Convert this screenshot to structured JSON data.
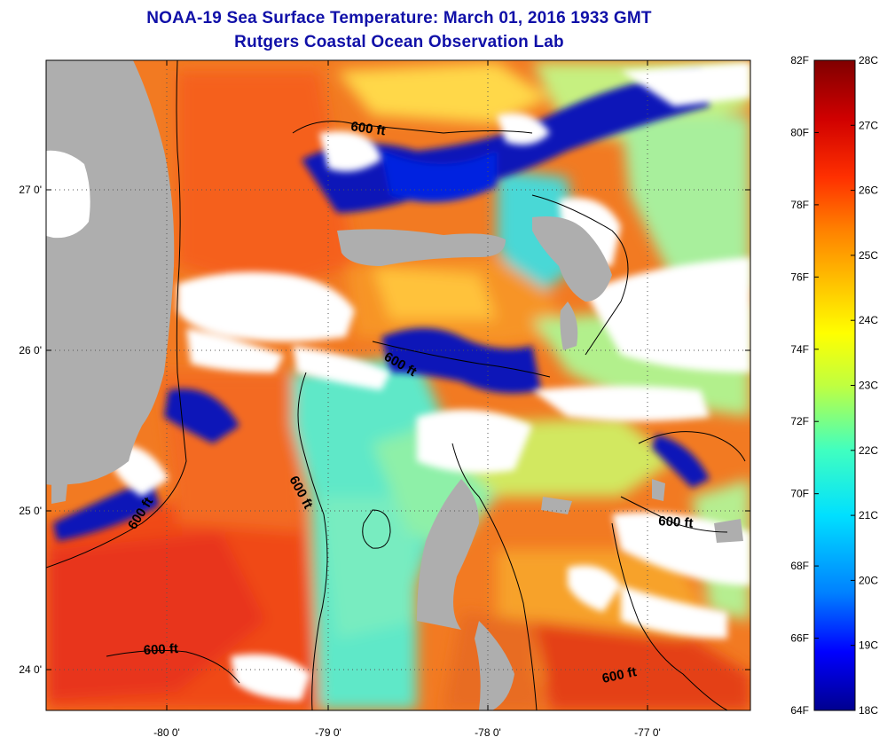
{
  "header": {
    "title": "NOAA-19 Sea Surface Temperature:  March 01, 2016 1933 GMT",
    "subtitle": "Rutgers Coastal Ocean Observation Lab"
  },
  "map": {
    "lat_ticks": [
      "27 0'",
      "26 0'",
      "25 0'",
      "24 0'"
    ],
    "lon_ticks": [
      "-80 0'",
      "-79 0'",
      "-78 0'",
      "-77 0'"
    ],
    "contour_labels": [
      "600 ft",
      "600 ft",
      "600 ft",
      "600 ft",
      "600 ft",
      "600 ft"
    ],
    "colors": {
      "land": "#aeaeae",
      "cloud": "#ffffff",
      "contour": "#000000"
    }
  },
  "colorbar": {
    "fahrenheit_labels": [
      "82F",
      "80F",
      "78F",
      "76F",
      "74F",
      "72F",
      "70F",
      "68F",
      "66F",
      "64F"
    ],
    "celsius_labels": [
      "28C",
      "27C",
      "26C",
      "25C",
      "24C",
      "23C",
      "22C",
      "21C",
      "20C",
      "19C",
      "18C"
    ],
    "range_f": [
      64,
      82
    ],
    "range_c": [
      18,
      28
    ],
    "gradient": [
      "#00008f",
      "#0000ff",
      "#0080ff",
      "#00e0ff",
      "#40ffc0",
      "#c0ff40",
      "#ffff00",
      "#ffc000",
      "#ff8000",
      "#ff3000",
      "#d00000",
      "#800000"
    ]
  }
}
